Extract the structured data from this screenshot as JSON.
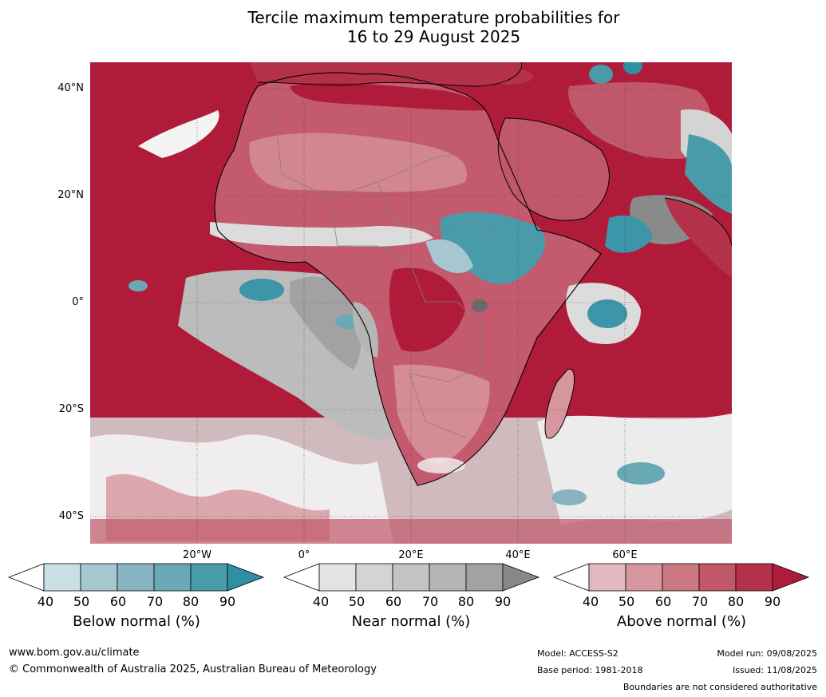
{
  "title_line1": "Tercile maximum temperature probabilities for",
  "title_line2": "16 to 29 August 2025",
  "lat_labels": [
    "40°N",
    "20°N",
    "0°",
    "20°S",
    "40°S"
  ],
  "lon_labels": [
    "20°W",
    "0°",
    "20°E",
    "40°E",
    "60°E"
  ],
  "colorbars": {
    "below": {
      "label": "Below normal (%)",
      "ticks": [
        "40",
        "50",
        "60",
        "70",
        "80",
        "90"
      ],
      "colors": [
        "#ffffff",
        "#c8e0e6",
        "#a6c7cf",
        "#87b4c0",
        "#69a9b6",
        "#4a9baa",
        "#2f8fa4"
      ]
    },
    "near": {
      "label": "Near normal (%)",
      "ticks": [
        "40",
        "50",
        "60",
        "70",
        "80",
        "90"
      ],
      "colors": [
        "#ffffff",
        "#e3e3e3",
        "#d4d4d4",
        "#c4c4c4",
        "#b5b5b5",
        "#a2a2a2",
        "#888888"
      ]
    },
    "above": {
      "label": "Above normal (%)",
      "ticks": [
        "40",
        "50",
        "60",
        "70",
        "80",
        "90"
      ],
      "colors": [
        "#ffffff",
        "#e2b7bd",
        "#d7959d",
        "#cb7880",
        "#c0586a",
        "#b3324a",
        "#b01b3a"
      ]
    }
  },
  "footer": {
    "website": "www.bom.gov.au/climate",
    "copyright": "© Commonwealth of Australia 2025, Australian Bureau of Meteorology",
    "model": "Model: ACCESS-S2",
    "base_period": "Base period: 1981-2018",
    "model_run": "Model run: 09/08/2025",
    "issued": "Issued: 11/08/2025",
    "disclaimer": "Boundaries are not considered authoritative"
  },
  "colors": {
    "ocean_warm": "#b01b3a",
    "land_warm": "#c35a6d",
    "near_normal": "#a2a2a2",
    "below_normal": "#3c95a8",
    "coast": "#000000",
    "border": "#808080"
  }
}
